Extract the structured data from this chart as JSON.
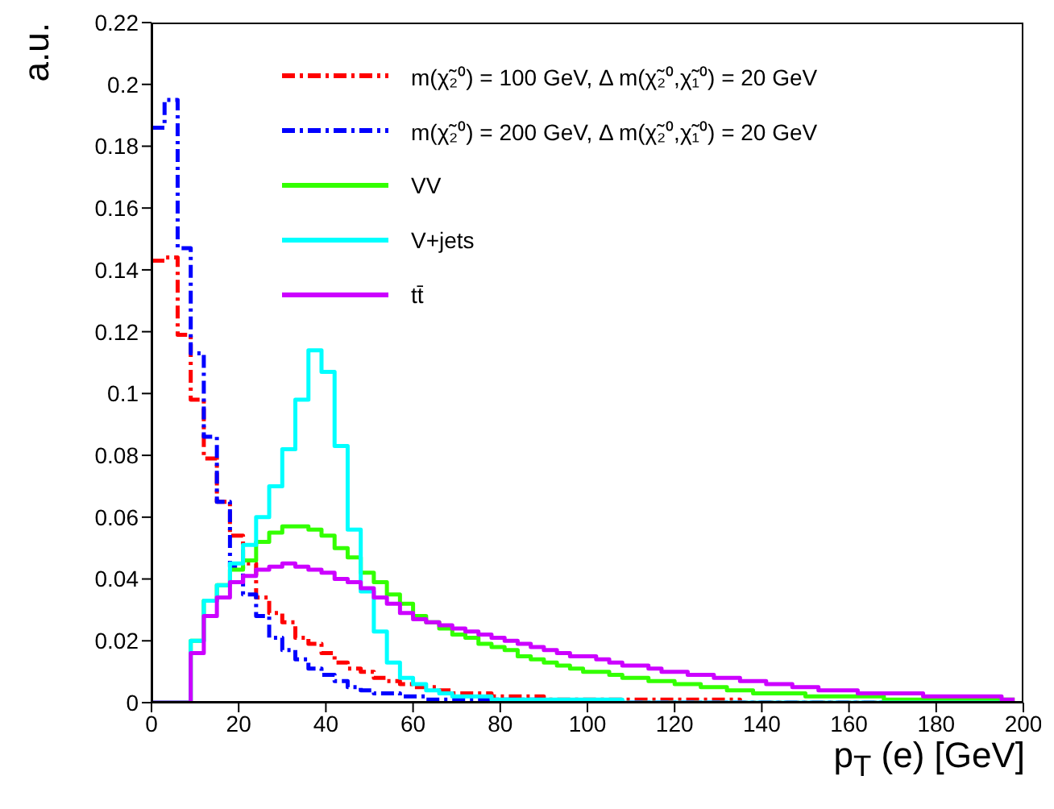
{
  "chart_data": {
    "type": "histogram",
    "xlabel": "p$_{T}$ (e) [GeV]",
    "ylabel": "a.u.",
    "bins": [
      0,
      3,
      6,
      9,
      12,
      15,
      18,
      21,
      24,
      27,
      30,
      33,
      36,
      39,
      42,
      45,
      48,
      51,
      54,
      57,
      60,
      63,
      66,
      69,
      72,
      75,
      78,
      81,
      84,
      87,
      90,
      93,
      96,
      99,
      102,
      105,
      108,
      111,
      114,
      117,
      120,
      123,
      126,
      129,
      132,
      135,
      138,
      141,
      144,
      147,
      150,
      153,
      156,
      159,
      162,
      165,
      168,
      171,
      174,
      177,
      180,
      183,
      186,
      189,
      192,
      195,
      198
    ],
    "xlim": [
      0,
      200
    ],
    "xticks": [
      0,
      20,
      40,
      60,
      80,
      100,
      120,
      140,
      160,
      180,
      200
    ],
    "ylim": [
      0,
      0.22
    ],
    "yticks": [
      0,
      0.02,
      0.04,
      0.06,
      0.08,
      0.1,
      0.12,
      0.14,
      0.16,
      0.18,
      0.2,
      0.22
    ],
    "grid": false,
    "legend": "top right",
    "series": [
      {
        "name": "m(χ̃₂⁰) = 100 GeV, Δ m(χ̃₂⁰,χ̃₁⁰) = 20 GeV",
        "color": "#ff0000",
        "line_style": "dashed",
        "values": [
          0.143,
          0.144,
          0.119,
          0.098,
          0.079,
          0.065,
          0.054,
          0.045,
          0.034,
          0.029,
          0.026,
          0.021,
          0.019,
          0.016,
          0.013,
          0.011,
          0.01,
          0.008,
          0.007,
          0.006,
          0.005,
          0.005,
          0.004,
          0.003,
          0.003,
          0.003,
          0.002,
          0.002,
          0.002,
          0.002,
          0.001,
          0.001,
          0.001,
          0.001,
          0.001,
          0.001,
          0.001,
          0.001,
          0.001,
          0.001,
          0.001,
          0.001,
          0.001,
          0.001,
          0.001,
          0,
          0,
          0,
          0,
          0,
          0,
          0,
          0,
          0,
          0,
          0,
          0,
          0,
          0,
          0,
          0,
          0,
          0,
          0,
          0,
          0
        ]
      },
      {
        "name": "m(χ̃₂⁰) = 200 GeV, Δ m(χ̃₂⁰,χ̃₁⁰) = 20 GeV",
        "color": "#0000ff",
        "line_style": "dashed",
        "values": [
          0.186,
          0.195,
          0.147,
          0.113,
          0.086,
          0.065,
          0.044,
          0.035,
          0.028,
          0.021,
          0.017,
          0.014,
          0.011,
          0.009,
          0.007,
          0.005,
          0.004,
          0.003,
          0.003,
          0.002,
          0.002,
          0.001,
          0.001,
          0.001,
          0.001,
          0.001,
          0.001,
          0.001,
          0.001,
          0.001,
          0,
          0,
          0,
          0,
          0,
          0,
          0,
          0,
          0,
          0,
          0,
          0,
          0,
          0,
          0,
          0,
          0,
          0,
          0,
          0,
          0,
          0,
          0,
          0,
          0,
          0,
          0,
          0,
          0,
          0,
          0,
          0,
          0,
          0,
          0,
          0
        ]
      },
      {
        "name": "VV",
        "color": "#33ff00",
        "line_style": "solid",
        "values": [
          0,
          0,
          0,
          0.02,
          0.033,
          0.038,
          0.043,
          0.046,
          0.052,
          0.055,
          0.057,
          0.057,
          0.056,
          0.054,
          0.05,
          0.047,
          0.042,
          0.039,
          0.035,
          0.032,
          0.028,
          0.026,
          0.024,
          0.022,
          0.021,
          0.019,
          0.018,
          0.017,
          0.015,
          0.014,
          0.013,
          0.012,
          0.011,
          0.01,
          0.01,
          0.009,
          0.008,
          0.008,
          0.007,
          0.007,
          0.006,
          0.006,
          0.005,
          0.005,
          0.004,
          0.004,
          0.003,
          0.003,
          0.003,
          0.003,
          0.002,
          0.002,
          0.002,
          0.002,
          0.002,
          0.002,
          0.001,
          0.001,
          0.001,
          0.001,
          0.001,
          0.001,
          0.001,
          0.001,
          0.001,
          0.001
        ]
      },
      {
        "name": "V+jets",
        "color": "#00ffff",
        "line_style": "solid",
        "values": [
          0,
          0,
          0,
          0.02,
          0.033,
          0.038,
          0.045,
          0.051,
          0.06,
          0.07,
          0.082,
          0.098,
          0.114,
          0.107,
          0.083,
          0.056,
          0.036,
          0.023,
          0.013,
          0.008,
          0.006,
          0.004,
          0.003,
          0.002,
          0.002,
          0.002,
          0.001,
          0.001,
          0.001,
          0.001,
          0.001,
          0.001,
          0.001,
          0.001,
          0.001,
          0.001,
          0,
          0,
          0,
          0,
          0,
          0,
          0,
          0,
          0,
          0,
          0,
          0,
          0,
          0,
          0,
          0,
          0,
          0,
          0,
          0,
          0,
          0,
          0,
          0,
          0,
          0,
          0,
          0,
          0,
          0
        ]
      },
      {
        "name": "tt̄",
        "color": "#cc00ff",
        "line_style": "solid",
        "values": [
          0,
          0,
          0,
          0.016,
          0.028,
          0.034,
          0.039,
          0.041,
          0.043,
          0.044,
          0.045,
          0.044,
          0.043,
          0.042,
          0.04,
          0.039,
          0.037,
          0.034,
          0.032,
          0.029,
          0.027,
          0.026,
          0.025,
          0.024,
          0.023,
          0.022,
          0.021,
          0.02,
          0.019,
          0.018,
          0.017,
          0.016,
          0.015,
          0.015,
          0.014,
          0.013,
          0.012,
          0.012,
          0.011,
          0.01,
          0.01,
          0.009,
          0.009,
          0.008,
          0.008,
          0.007,
          0.007,
          0.006,
          0.006,
          0.005,
          0.005,
          0.004,
          0.004,
          0.004,
          0.003,
          0.003,
          0.003,
          0.003,
          0.003,
          0.002,
          0.002,
          0.002,
          0.002,
          0.002,
          0.002,
          0.001
        ]
      }
    ]
  }
}
